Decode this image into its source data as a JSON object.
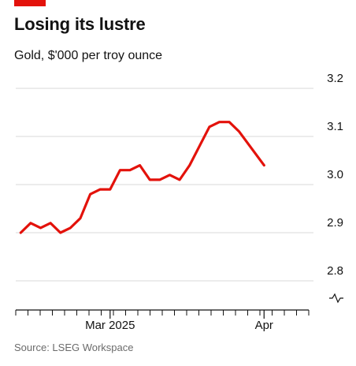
{
  "header": {
    "title": "Losing its lustre",
    "subtitle": "Gold, $'000 per troy ounce"
  },
  "footer": {
    "source": "Source: LSEG Workspace"
  },
  "colors": {
    "accent": "#e3120b",
    "line": "#e3120b",
    "grid": "#d9d9d9",
    "axis": "#121212"
  },
  "chart_data": {
    "type": "line",
    "title": "Losing its lustre",
    "subtitle": "Gold, $'000 per troy ounce",
    "xlabel": "",
    "ylabel": "",
    "y_axis_position": "right",
    "y_axis_break": true,
    "grid": true,
    "ylim": [
      2.8,
      3.2
    ],
    "y_ticks": [
      3.2,
      3.1,
      3.0,
      2.9,
      2.8
    ],
    "y_tick_labels": [
      "3.2",
      "3.1",
      "3.0",
      "2.9",
      "2.8"
    ],
    "x_tick_labels": [
      "Mar 2025",
      "Apr"
    ],
    "x_tick_label_dates": [
      "2025-03-01",
      "2025-04-01"
    ],
    "x_range": [
      "2025-02-10",
      "2025-04-10"
    ],
    "series": [
      {
        "values": [
          {
            "x": "2025-02-11",
            "y": 2.9
          },
          {
            "x": "2025-02-13",
            "y": 2.92
          },
          {
            "x": "2025-02-15",
            "y": 2.91
          },
          {
            "x": "2025-02-17",
            "y": 2.92
          },
          {
            "x": "2025-02-19",
            "y": 2.9
          },
          {
            "x": "2025-02-21",
            "y": 2.91
          },
          {
            "x": "2025-02-23",
            "y": 2.93
          },
          {
            "x": "2025-02-25",
            "y": 2.98
          },
          {
            "x": "2025-02-27",
            "y": 2.99
          },
          {
            "x": "2025-03-01",
            "y": 2.99
          },
          {
            "x": "2025-03-03",
            "y": 3.03
          },
          {
            "x": "2025-03-05",
            "y": 3.03
          },
          {
            "x": "2025-03-07",
            "y": 3.04
          },
          {
            "x": "2025-03-09",
            "y": 3.01
          },
          {
            "x": "2025-03-11",
            "y": 3.01
          },
          {
            "x": "2025-03-13",
            "y": 3.02
          },
          {
            "x": "2025-03-15",
            "y": 3.01
          },
          {
            "x": "2025-03-17",
            "y": 3.04
          },
          {
            "x": "2025-03-19",
            "y": 3.08
          },
          {
            "x": "2025-03-21",
            "y": 3.12
          },
          {
            "x": "2025-03-23",
            "y": 3.13
          },
          {
            "x": "2025-03-25",
            "y": 3.13
          },
          {
            "x": "2025-03-27",
            "y": 3.11
          },
          {
            "x": "2025-04-01",
            "y": 3.04
          }
        ]
      }
    ]
  }
}
